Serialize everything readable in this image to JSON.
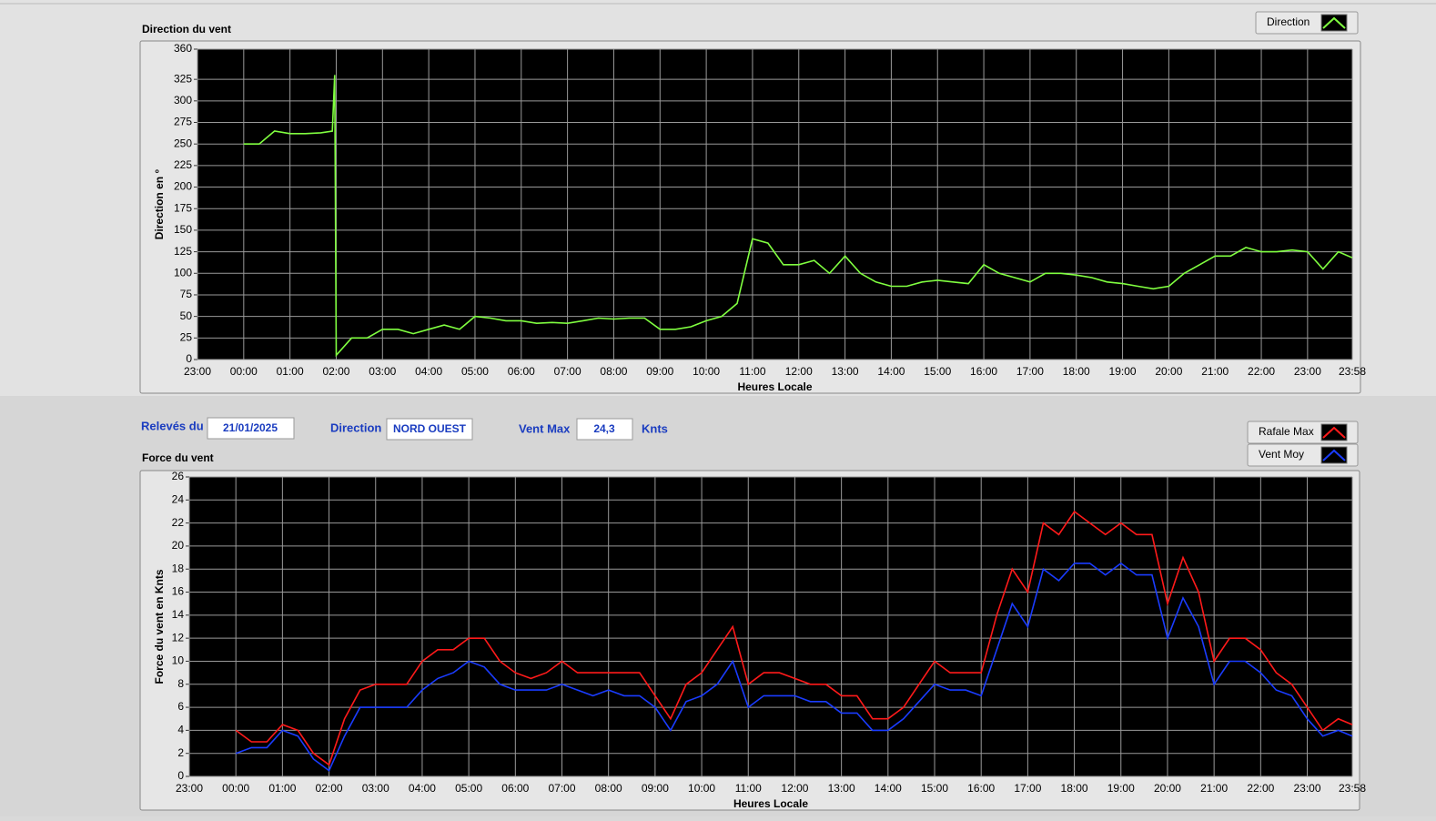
{
  "form": {
    "date_label": "Relevés du",
    "date": "21/01/2025",
    "direction_label": "Direction",
    "direction": "NORD OUEST",
    "vent_max_label": "Vent Max",
    "vent_max": "24,3",
    "unit": "Knts"
  },
  "chart_data": [
    {
      "type": "line",
      "title": "Direction du vent",
      "y_label": "Direction en °",
      "x_label": "Heures Locale",
      "grid": true,
      "legend": "top-right",
      "xlim": [
        "23:00",
        "23:58"
      ],
      "xticks": [
        "23:00",
        "00:00",
        "01:00",
        "02:00",
        "03:00",
        "04:00",
        "05:00",
        "06:00",
        "07:00",
        "08:00",
        "09:00",
        "10:00",
        "11:00",
        "12:00",
        "13:00",
        "14:00",
        "15:00",
        "16:00",
        "17:00",
        "18:00",
        "19:00",
        "20:00",
        "21:00",
        "22:00",
        "23:00",
        "23:58"
      ],
      "ylim": [
        0,
        360
      ],
      "yticks": [
        0,
        25,
        50,
        75,
        100,
        125,
        150,
        175,
        200,
        225,
        250,
        275,
        300,
        325,
        360
      ],
      "x": [
        "00:00",
        "00:20",
        "00:40",
        "01:00",
        "01:20",
        "01:40",
        "01:55",
        "01:58",
        "02:00",
        "02:20",
        "02:40",
        "03:00",
        "03:20",
        "03:40",
        "04:00",
        "04:20",
        "04:40",
        "05:00",
        "05:20",
        "05:40",
        "06:00",
        "06:20",
        "06:40",
        "07:00",
        "07:20",
        "07:40",
        "08:00",
        "08:20",
        "08:40",
        "09:00",
        "09:20",
        "09:40",
        "10:00",
        "10:20",
        "10:40",
        "11:00",
        "11:20",
        "11:40",
        "12:00",
        "12:20",
        "12:40",
        "13:00",
        "13:20",
        "13:40",
        "14:00",
        "14:20",
        "14:40",
        "15:00",
        "15:20",
        "15:40",
        "16:00",
        "16:20",
        "16:40",
        "17:00",
        "17:20",
        "17:40",
        "18:00",
        "18:20",
        "18:40",
        "19:00",
        "19:20",
        "19:40",
        "20:00",
        "20:20",
        "20:40",
        "21:00",
        "21:20",
        "21:40",
        "22:00",
        "22:20",
        "22:40",
        "23:00",
        "23:20",
        "23:40",
        "23:58"
      ],
      "series": [
        {
          "name": "Direction",
          "color": "#80ff40",
          "values": [
            250,
            250,
            265,
            262,
            262,
            263,
            265,
            330,
            5,
            25,
            25,
            35,
            35,
            30,
            35,
            40,
            35,
            50,
            48,
            45,
            45,
            42,
            43,
            42,
            45,
            48,
            47,
            48,
            48,
            35,
            35,
            38,
            45,
            50,
            65,
            140,
            135,
            110,
            110,
            115,
            100,
            120,
            100,
            90,
            85,
            85,
            90,
            92,
            90,
            88,
            110,
            100,
            95,
            90,
            100,
            100,
            98,
            95,
            90,
            88,
            85,
            82,
            85,
            100,
            110,
            120,
            120,
            130,
            125,
            125,
            127,
            125,
            105,
            125,
            118
          ]
        }
      ]
    },
    {
      "type": "line",
      "title": "Force du vent",
      "y_label": "Force du vent en Knts",
      "x_label": "Heures Locale",
      "grid": true,
      "legend": "top-right",
      "xlim": [
        "23:00",
        "23:58"
      ],
      "xticks": [
        "23:00",
        "00:00",
        "01:00",
        "02:00",
        "03:00",
        "04:00",
        "05:00",
        "06:00",
        "07:00",
        "08:00",
        "09:00",
        "10:00",
        "11:00",
        "12:00",
        "13:00",
        "14:00",
        "15:00",
        "16:00",
        "17:00",
        "18:00",
        "19:00",
        "20:00",
        "21:00",
        "22:00",
        "23:00",
        "23:58"
      ],
      "ylim": [
        0,
        26
      ],
      "yticks": [
        0,
        2,
        4,
        6,
        8,
        10,
        12,
        14,
        16,
        18,
        20,
        22,
        24,
        26
      ],
      "x": [
        "00:00",
        "00:20",
        "00:40",
        "01:00",
        "01:20",
        "01:40",
        "02:00",
        "02:20",
        "02:40",
        "03:00",
        "03:20",
        "03:40",
        "04:00",
        "04:20",
        "04:40",
        "05:00",
        "05:20",
        "05:40",
        "06:00",
        "06:20",
        "06:40",
        "07:00",
        "07:20",
        "07:40",
        "08:00",
        "08:20",
        "08:40",
        "09:00",
        "09:20",
        "09:40",
        "10:00",
        "10:20",
        "10:40",
        "11:00",
        "11:20",
        "11:40",
        "12:00",
        "12:20",
        "12:40",
        "13:00",
        "13:20",
        "13:40",
        "14:00",
        "14:20",
        "14:40",
        "15:00",
        "15:20",
        "15:40",
        "16:00",
        "16:20",
        "16:40",
        "17:00",
        "17:20",
        "17:40",
        "18:00",
        "18:20",
        "18:40",
        "19:00",
        "19:20",
        "19:40",
        "20:00",
        "20:20",
        "20:40",
        "21:00",
        "21:20",
        "21:40",
        "22:00",
        "22:20",
        "22:40",
        "23:00",
        "23:20",
        "23:40",
        "23:58"
      ],
      "series": [
        {
          "name": "Rafale Max",
          "color": "#ff1a1a",
          "values": [
            4,
            3,
            3,
            4.5,
            4,
            2,
            1,
            5,
            7.5,
            8,
            8,
            8,
            10,
            11,
            11,
            12,
            12,
            10,
            9,
            8.5,
            9,
            10,
            9,
            9,
            9,
            9,
            9,
            7,
            5,
            8,
            9,
            11,
            13,
            8,
            9,
            9,
            8.5,
            8,
            8,
            7,
            7,
            5,
            5,
            6,
            8,
            10,
            9,
            9,
            9,
            14,
            18,
            16,
            22,
            21,
            23,
            22,
            21,
            22,
            21,
            21,
            15,
            19,
            16,
            10,
            12,
            12,
            11,
            9,
            8,
            6,
            4,
            5,
            4.5
          ]
        },
        {
          "name": "Vent Moy",
          "color": "#1a3cff",
          "values": [
            2,
            2.5,
            2.5,
            4,
            3.5,
            1.5,
            0.5,
            3.5,
            6,
            6,
            6,
            6,
            7.5,
            8.5,
            9,
            10,
            9.5,
            8,
            7.5,
            7.5,
            7.5,
            8,
            7.5,
            7,
            7.5,
            7,
            7,
            6,
            4,
            6.5,
            7,
            8,
            10,
            6,
            7,
            7,
            7,
            6.5,
            6.5,
            5.5,
            5.5,
            4,
            4,
            5,
            6.5,
            8,
            7.5,
            7.5,
            7,
            11,
            15,
            13,
            18,
            17,
            18.5,
            18.5,
            17.5,
            18.5,
            17.5,
            17.5,
            12,
            15.5,
            13,
            8,
            10,
            10,
            9,
            7.5,
            7,
            5,
            3.5,
            4,
            3.5
          ]
        }
      ]
    }
  ]
}
